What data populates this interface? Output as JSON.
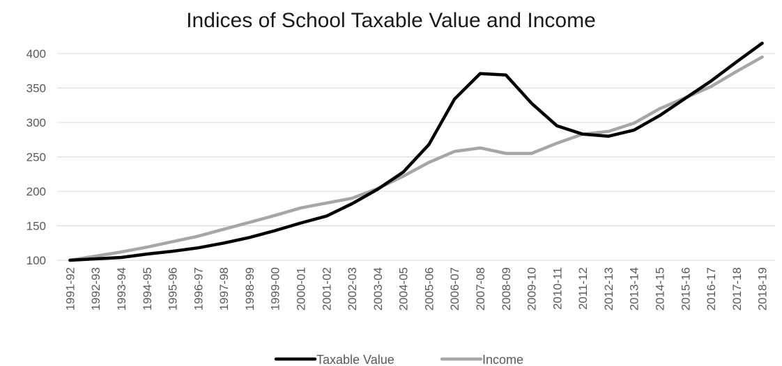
{
  "chart_data": {
    "type": "line",
    "title": "Indices of School Taxable Value and Income",
    "xlabel": "",
    "ylabel": "",
    "ylim": [
      100,
      400
    ],
    "yticks": [
      100,
      150,
      200,
      250,
      300,
      350,
      400
    ],
    "grid": true,
    "legend_position": "bottom",
    "categories": [
      "1991-92",
      "1992-93",
      "1993-94",
      "1994-95",
      "1995-96",
      "1996-97",
      "1997-98",
      "1998-99",
      "1999-00",
      "2000-01",
      "2001-02",
      "2002-03",
      "2003-04",
      "2004-05",
      "2005-06",
      "2006-07",
      "2007-08",
      "2008-09",
      "2009-10",
      "2010-11",
      "2011-12",
      "2012-13",
      "2013-14",
      "2014-15",
      "2015-16",
      "2016-17",
      "2017-18",
      "2018-19"
    ],
    "series": [
      {
        "name": "Taxable Value",
        "color": "#000000",
        "values": [
          100,
          102,
          104,
          109,
          113,
          118,
          125,
          133,
          143,
          154,
          164,
          182,
          203,
          228,
          268,
          334,
          371,
          369,
          328,
          295,
          283,
          280,
          289,
          310,
          335,
          360,
          388,
          415
        ]
      },
      {
        "name": "Income",
        "color": "#a6a6a6",
        "values": [
          100,
          106,
          112,
          119,
          127,
          135,
          145,
          155,
          165,
          176,
          183,
          190,
          204,
          222,
          242,
          258,
          263,
          255,
          255,
          270,
          283,
          287,
          299,
          320,
          336,
          352,
          374,
          395
        ]
      }
    ]
  }
}
